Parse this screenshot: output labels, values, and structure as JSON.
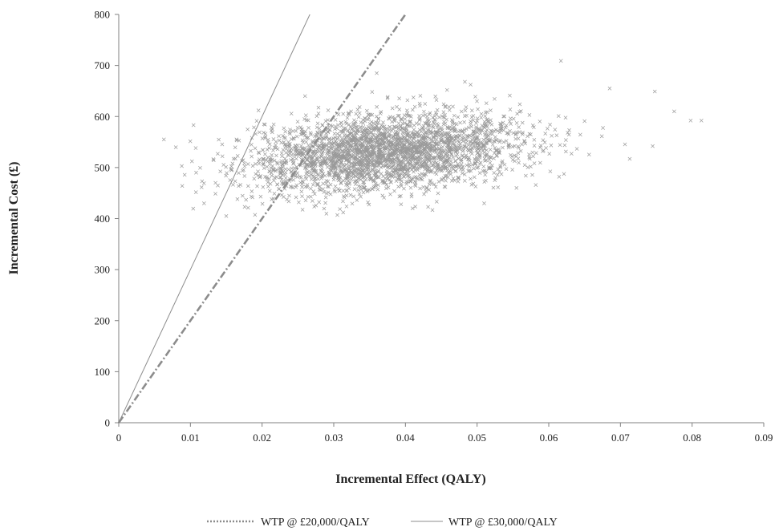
{
  "chart_data": {
    "type": "scatter",
    "xlabel": "Incremental Effect (QALY)",
    "ylabel": "Incremental Cost (£)",
    "xlim": [
      0,
      0.09
    ],
    "ylim": [
      0,
      800
    ],
    "x_ticks": [
      "0",
      "0.01",
      "0.02",
      "0.03",
      "0.04",
      "0.05",
      "0.06",
      "0.07",
      "0.08",
      "0.09"
    ],
    "y_ticks": [
      "0",
      "100",
      "200",
      "300",
      "400",
      "500",
      "600",
      "700",
      "800"
    ],
    "grid": false,
    "legend_position": "bottom",
    "series": [
      {
        "marker": "x",
        "color": "#9a9a9a",
        "points_approx_count": 3000,
        "distribution": {
          "x_center": 0.037,
          "x_range": [
            0.006,
            0.082
          ],
          "y_center": 540,
          "y_range": [
            405,
            710
          ]
        },
        "sample_points": [
          [
            0.0063,
            555
          ],
          [
            0.0088,
            503
          ],
          [
            0.0108,
            490
          ],
          [
            0.0135,
            470
          ],
          [
            0.015,
            405
          ],
          [
            0.0195,
            612
          ],
          [
            0.026,
            640
          ],
          [
            0.0305,
            407
          ],
          [
            0.036,
            685
          ],
          [
            0.041,
            420
          ],
          [
            0.0483,
            668
          ],
          [
            0.0555,
            460
          ],
          [
            0.0617,
            709
          ],
          [
            0.0685,
            655
          ],
          [
            0.0713,
            517
          ],
          [
            0.0748,
            649
          ],
          [
            0.0775,
            610
          ],
          [
            0.0798,
            592
          ],
          [
            0.0813,
            592
          ],
          [
            0.0745,
            542
          ]
        ]
      }
    ],
    "lines": [
      {
        "name": "WTP @ £20,000/QALY",
        "slope": 20000,
        "style": "dash-dot",
        "color": "#8c8c8c"
      },
      {
        "name": "WTP @ £30,000/QALY",
        "slope": 30000,
        "style": "solid",
        "color": "#8c8c8c"
      }
    ]
  }
}
